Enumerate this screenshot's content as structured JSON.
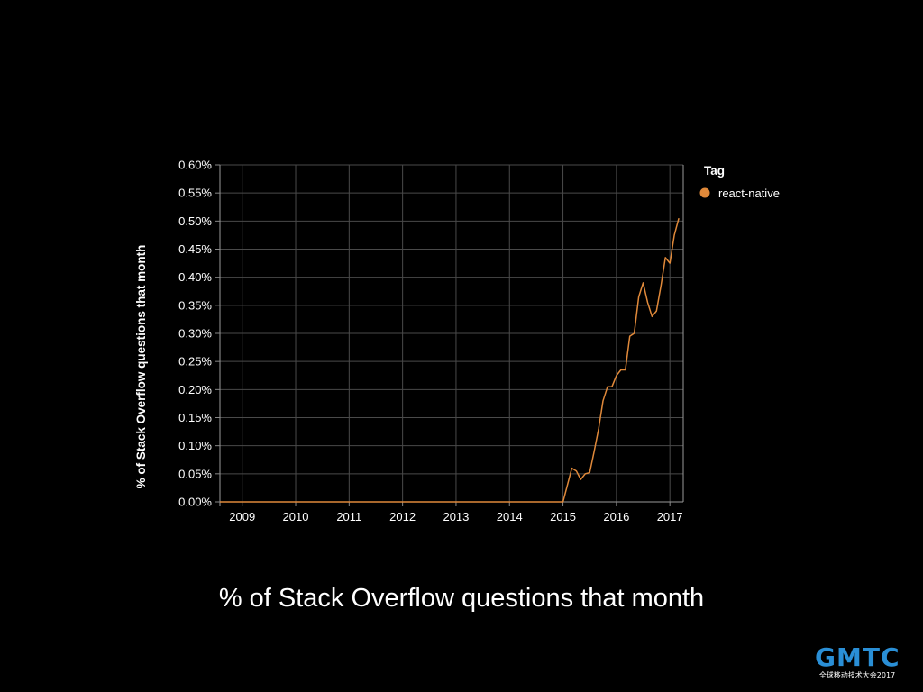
{
  "slide": {
    "caption": "% of Stack Overflow questions that month"
  },
  "logo": {
    "wordmark": "GMTC",
    "subtitle": "全球移动技术大会2017",
    "color": "#2a8fd6"
  },
  "chart_data": {
    "type": "line",
    "title": "",
    "xlabel": "",
    "ylabel": "% of Stack Overflow questions that month",
    "xlim": [
      "2008-08",
      "2017-04"
    ],
    "ylim": [
      0,
      0.6
    ],
    "y_ticks": [
      "0.00%",
      "0.05%",
      "0.10%",
      "0.15%",
      "0.20%",
      "0.25%",
      "0.30%",
      "0.35%",
      "0.40%",
      "0.45%",
      "0.50%",
      "0.55%",
      "0.60%"
    ],
    "x_ticks": [
      "2009",
      "2010",
      "2011",
      "2012",
      "2013",
      "2014",
      "2015",
      "2016",
      "2017"
    ],
    "grid": true,
    "legend": {
      "title": "Tag",
      "position": "right"
    },
    "series": [
      {
        "name": "react-native",
        "color": "#e0893a",
        "points": [
          [
            "2008-08",
            0.0
          ],
          [
            "2015-01",
            0.0
          ],
          [
            "2015-02",
            0.03
          ],
          [
            "2015-03",
            0.06
          ],
          [
            "2015-04",
            0.055
          ],
          [
            "2015-05",
            0.04
          ],
          [
            "2015-06",
            0.05
          ],
          [
            "2015-07",
            0.052
          ],
          [
            "2015-08",
            0.09
          ],
          [
            "2015-09",
            0.13
          ],
          [
            "2015-10",
            0.18
          ],
          [
            "2015-11",
            0.205
          ],
          [
            "2015-12",
            0.205
          ],
          [
            "2016-01",
            0.225
          ],
          [
            "2016-02",
            0.235
          ],
          [
            "2016-03",
            0.235
          ],
          [
            "2016-04",
            0.295
          ],
          [
            "2016-05",
            0.3
          ],
          [
            "2016-06",
            0.365
          ],
          [
            "2016-07",
            0.39
          ],
          [
            "2016-08",
            0.355
          ],
          [
            "2016-09",
            0.33
          ],
          [
            "2016-10",
            0.34
          ],
          [
            "2016-11",
            0.385
          ],
          [
            "2016-12",
            0.435
          ],
          [
            "2017-01",
            0.425
          ],
          [
            "2017-02",
            0.475
          ],
          [
            "2017-03",
            0.505
          ]
        ]
      }
    ]
  }
}
